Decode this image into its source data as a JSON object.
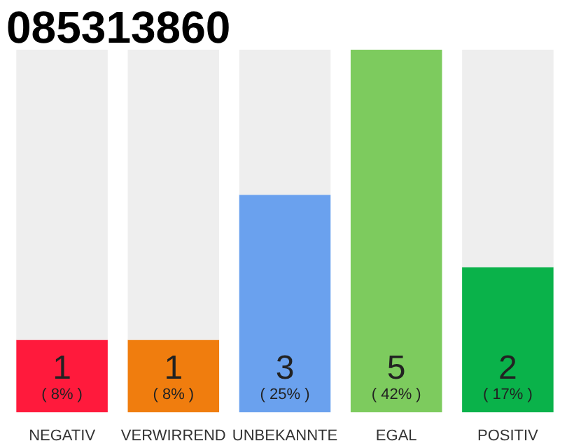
{
  "chart_data": {
    "type": "bar",
    "title": "085313860",
    "stacked": true,
    "categories": [
      "NEGATIV",
      "VERWIRREND",
      "UNBEKANNTE",
      "EGAL",
      "POSITIV"
    ],
    "series": [
      {
        "colors": [
          "#ff1a3c",
          "#f07d0e",
          "#6aa1ee",
          "#7dcb5e",
          "#0ab24a"
        ],
        "values": [
          1,
          1,
          3,
          5,
          2
        ],
        "data_labels": true
      },
      {
        "color": "#eeeeee",
        "values": [
          4,
          4,
          2,
          0,
          3
        ]
      }
    ],
    "annotations": [
      "( 8% )",
      "( 8% )",
      "( 25% )",
      "( 42% )",
      "( 17% )"
    ],
    "grid": false
  }
}
